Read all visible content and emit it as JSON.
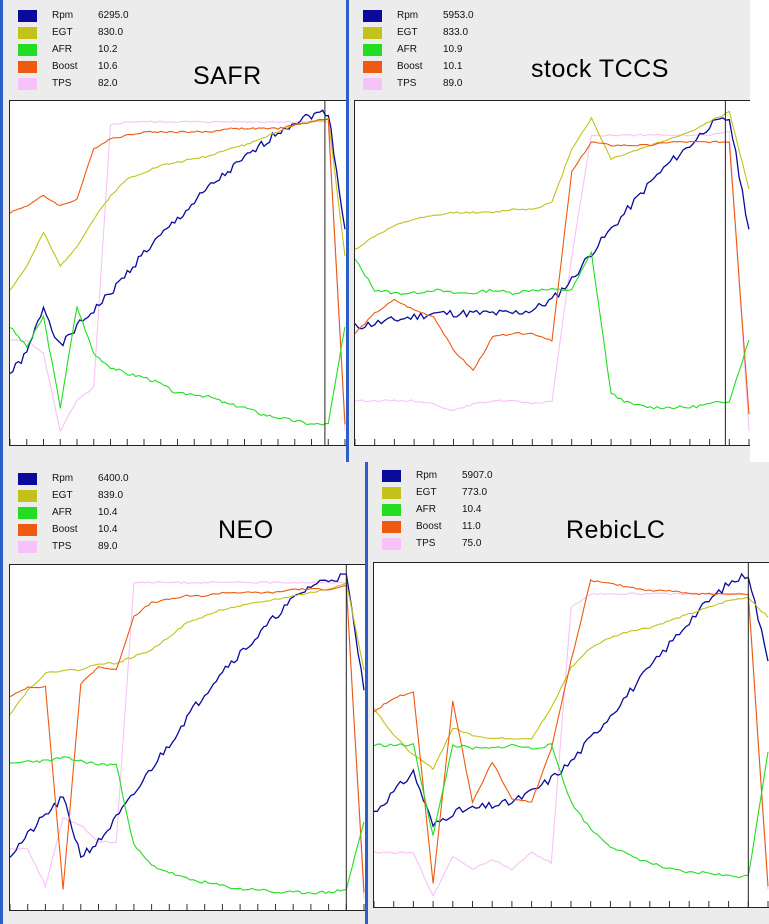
{
  "chart_data": [
    {
      "type": "line",
      "title": "SAFR",
      "legend_placement": "top-left",
      "legend": [
        {
          "name": "Rpm",
          "value": "6295.0",
          "color": "#0a0a9c"
        },
        {
          "name": "EGT",
          "value": "830.0",
          "color": "#c2c21a"
        },
        {
          "name": "AFR",
          "value": "10.2",
          "color": "#22dd22"
        },
        {
          "name": "Boost",
          "value": "10.6",
          "color": "#ee5a10"
        },
        {
          "name": "TPS",
          "value": "82.0",
          "color": "#f8c2f8"
        }
      ],
      "x": [
        0,
        5,
        10,
        15,
        20,
        25,
        30,
        35,
        40,
        45,
        50,
        55,
        60,
        65,
        70,
        75,
        80,
        85,
        90,
        95,
        100
      ],
      "series": [
        {
          "name": "Rpm",
          "values": [
            20,
            26,
            40,
            28,
            34,
            39,
            44,
            50,
            56,
            61,
            66,
            71,
            76,
            80,
            84,
            88,
            92,
            95,
            97,
            98,
            63
          ]
        },
        {
          "name": "EGT",
          "values": [
            45,
            52,
            62,
            52,
            58,
            66,
            73,
            78,
            80,
            82,
            83,
            84,
            85,
            87,
            88,
            90,
            92,
            94,
            95,
            96,
            55
          ]
        },
        {
          "name": "AFR",
          "values": [
            34,
            28,
            37,
            10,
            40,
            26,
            22,
            20,
            19,
            17,
            14,
            14,
            13,
            11,
            10,
            8,
            7,
            6,
            5,
            5,
            34
          ]
        },
        {
          "name": "Boost",
          "values": [
            68,
            70,
            73,
            70,
            72,
            87,
            90,
            91,
            92,
            92,
            92,
            92,
            92,
            93,
            93,
            93,
            93,
            94,
            95,
            96,
            5
          ]
        },
        {
          "name": "TPS",
          "values": [
            30,
            30,
            26,
            3,
            12,
            16,
            94,
            95,
            95,
            95,
            95,
            95,
            95,
            95,
            95,
            95,
            95,
            95,
            95,
            95,
            3
          ]
        }
      ]
    },
    {
      "type": "line",
      "title": "stock TCCS",
      "legend_placement": "top-left",
      "legend": [
        {
          "name": "Rpm",
          "value": "5953.0",
          "color": "#0a0a9c"
        },
        {
          "name": "EGT",
          "value": "833.0",
          "color": "#c2c21a"
        },
        {
          "name": "AFR",
          "value": "10.9",
          "color": "#22dd22"
        },
        {
          "name": "Boost",
          "value": "10.1",
          "color": "#ee5a10"
        },
        {
          "name": "TPS",
          "value": "89.0",
          "color": "#f8c2f8"
        }
      ],
      "x": [
        0,
        5,
        10,
        15,
        20,
        25,
        30,
        35,
        40,
        45,
        50,
        55,
        60,
        65,
        70,
        75,
        80,
        85,
        90,
        95,
        100
      ],
      "series": [
        {
          "name": "Rpm",
          "values": [
            34,
            35,
            36,
            37,
            38,
            38,
            38,
            38,
            38,
            39,
            42,
            48,
            56,
            63,
            70,
            77,
            83,
            88,
            94,
            96,
            63
          ]
        },
        {
          "name": "EGT",
          "values": [
            57,
            61,
            64,
            66,
            67,
            68,
            68,
            68,
            69,
            69,
            71,
            87,
            96,
            84,
            86,
            88,
            90,
            92,
            95,
            98,
            75
          ]
        },
        {
          "name": "AFR",
          "values": [
            54,
            45,
            44,
            44,
            45,
            44,
            44,
            45,
            44,
            45,
            45,
            45,
            56,
            14,
            11,
            10,
            10,
            10,
            11,
            12,
            30
          ]
        },
        {
          "name": "Boost",
          "values": [
            32,
            38,
            42,
            39,
            37,
            27,
            21,
            31,
            32,
            32,
            30,
            80,
            89,
            88,
            88,
            88,
            89,
            89,
            89,
            89,
            8
          ]
        },
        {
          "name": "TPS",
          "values": [
            12,
            12,
            12,
            12,
            11,
            9,
            11,
            12,
            12,
            11,
            12,
            55,
            91,
            91,
            91,
            91,
            91,
            91,
            91,
            92,
            3
          ]
        }
      ]
    },
    {
      "type": "line",
      "title": "NEO",
      "legend_placement": "top-left",
      "legend": [
        {
          "name": "Rpm",
          "value": "6400.0",
          "color": "#0a0a9c"
        },
        {
          "name": "EGT",
          "value": "839.0",
          "color": "#c2c21a"
        },
        {
          "name": "AFR",
          "value": "10.4",
          "color": "#22dd22"
        },
        {
          "name": "Boost",
          "value": "10.4",
          "color": "#ee5a10"
        },
        {
          "name": "TPS",
          "value": "89.0",
          "color": "#f8c2f8"
        }
      ],
      "x": [
        0,
        5,
        10,
        15,
        20,
        25,
        30,
        35,
        40,
        45,
        50,
        55,
        60,
        65,
        70,
        75,
        80,
        85,
        90,
        95,
        100
      ],
      "series": [
        {
          "name": "Rpm",
          "values": [
            15,
            21,
            27,
            32,
            15,
            19,
            26,
            33,
            41,
            48,
            56,
            63,
            70,
            75,
            80,
            86,
            91,
            95,
            97,
            98,
            64
          ]
        },
        {
          "name": "EGT",
          "values": [
            57,
            64,
            69,
            70,
            70,
            72,
            72,
            74,
            76,
            80,
            84,
            86,
            88,
            89,
            90,
            91,
            92,
            93,
            94,
            96,
            70
          ]
        },
        {
          "name": "AFR",
          "values": [
            42,
            43,
            43,
            44,
            43,
            42,
            42,
            18,
            12,
            10,
            8,
            7,
            6,
            5,
            5,
            4,
            4,
            4,
            4,
            5,
            25
          ]
        },
        {
          "name": "Boost",
          "values": [
            62,
            65,
            65,
            5,
            66,
            71,
            70,
            86,
            90,
            91,
            92,
            92,
            93,
            93,
            93,
            93,
            94,
            94,
            94,
            95,
            4
          ]
        },
        {
          "name": "TPS",
          "values": [
            17,
            17,
            6,
            26,
            24,
            19,
            19,
            96,
            96,
            96,
            96,
            96,
            96,
            96,
            96,
            96,
            96,
            96,
            96,
            96,
            2
          ]
        }
      ]
    },
    {
      "type": "line",
      "title": "RebicLC",
      "legend_placement": "top-left",
      "legend": [
        {
          "name": "Rpm",
          "value": "5907.0",
          "color": "#0a0a9c"
        },
        {
          "name": "EGT",
          "value": "773.0",
          "color": "#c2c21a"
        },
        {
          "name": "AFR",
          "value": "10.4",
          "color": "#22dd22"
        },
        {
          "name": "Boost",
          "value": "11.0",
          "color": "#ee5a10"
        },
        {
          "name": "TPS",
          "value": "75.0",
          "color": "#f8c2f8"
        }
      ],
      "x": [
        0,
        5,
        10,
        15,
        20,
        25,
        30,
        35,
        40,
        45,
        50,
        55,
        60,
        65,
        70,
        75,
        80,
        85,
        90,
        95,
        100
      ],
      "series": [
        {
          "name": "Rpm",
          "values": [
            27,
            33,
            39,
            23,
            27,
            28,
            29,
            30,
            33,
            37,
            42,
            49,
            56,
            63,
            70,
            77,
            84,
            90,
            95,
            98,
            72
          ]
        },
        {
          "name": "EGT",
          "values": [
            58,
            50,
            44,
            40,
            52,
            50,
            49,
            49,
            49,
            58,
            70,
            76,
            79,
            81,
            82,
            84,
            86,
            88,
            90,
            91,
            85
          ]
        },
        {
          "name": "AFR",
          "values": [
            47,
            47,
            47,
            20,
            47,
            46,
            46,
            47,
            46,
            47,
            30,
            22,
            17,
            14,
            12,
            10,
            9,
            9,
            8,
            8,
            45
          ]
        },
        {
          "name": "Boost",
          "values": [
            57,
            61,
            63,
            6,
            60,
            30,
            42,
            31,
            30,
            46,
            72,
            96,
            95,
            94,
            93,
            93,
            92,
            92,
            92,
            92,
            5
          ]
        },
        {
          "name": "TPS",
          "values": [
            15,
            15,
            15,
            2,
            14,
            10,
            13,
            10,
            15,
            12,
            88,
            92,
            92,
            92,
            92,
            92,
            92,
            92,
            92,
            92,
            4
          ]
        }
      ]
    }
  ]
}
